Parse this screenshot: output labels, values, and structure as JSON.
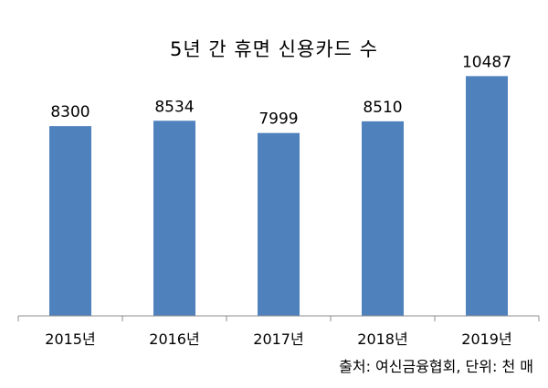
{
  "chart_data": {
    "type": "bar",
    "title": "5년 간 휴면 신용카드 수",
    "categories": [
      "2015년",
      "2016년",
      "2017년",
      "2018년",
      "2019년"
    ],
    "values": [
      8300,
      8534,
      7999,
      8510,
      10487
    ],
    "data_labels": [
      "8300",
      "8534",
      "7999",
      "8510",
      "10487"
    ],
    "ylim": [
      0,
      11500
    ],
    "grid": false,
    "legend": "none",
    "bar_color": "#4f81bd",
    "source_note": "출처: 여신금융협회, 단위: 천 매"
  }
}
